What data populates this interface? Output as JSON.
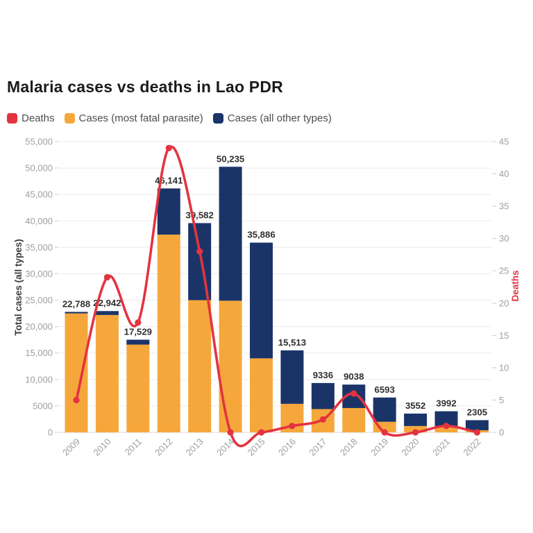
{
  "page": {
    "title": "Malaria cases vs deaths in Lao PDR",
    "background": "#ffffff"
  },
  "legend": {
    "items": [
      {
        "label": "Deaths",
        "color": "#e3333f"
      },
      {
        "label": "Cases (most fatal parasite)",
        "color": "#f6a73c"
      },
      {
        "label": "Cases (all other types)",
        "color": "#1b3468"
      }
    ]
  },
  "chart_data": {
    "type": "combo: stacked bar (left axis) + line (right axis)",
    "title": "Malaria cases vs deaths in Lao PDR",
    "categories": [
      "2009",
      "2010",
      "2011",
      "2012",
      "2013",
      "2014",
      "2015",
      "2016",
      "2017",
      "2018",
      "2019",
      "2020",
      "2021",
      "2022"
    ],
    "series": [
      {
        "name": "Cases (most fatal parasite)",
        "type": "bar",
        "stack": "cases",
        "color": "#f6a73c",
        "values": [
          22500,
          22200,
          16600,
          37400,
          25000,
          24900,
          14000,
          5400,
          4400,
          4600,
          2000,
          1200,
          1200,
          400
        ]
      },
      {
        "name": "Cases (all other types)",
        "type": "bar",
        "stack": "cases",
        "color": "#1b3468",
        "values": [
          288,
          742,
          929,
          8741,
          14582,
          25335,
          21886,
          10113,
          4936,
          4438,
          4593,
          2352,
          2792,
          1905
        ]
      },
      {
        "name": "Deaths",
        "type": "line",
        "axis": "right",
        "color": "#e3333f",
        "values": [
          5,
          24,
          17,
          44,
          28,
          0,
          0,
          1,
          2,
          6,
          0,
          0,
          1,
          0
        ]
      }
    ],
    "bar_totals": [
      22788,
      22942,
      17529,
      46141,
      39582,
      50235,
      35886,
      15513,
      9336,
      9038,
      6593,
      3552,
      3992,
      2305
    ],
    "bar_total_labels": [
      "22,788",
      "22,942",
      "17,529",
      "46,141",
      "39,582",
      "50,235",
      "35,886",
      "15,513",
      "9336",
      "9038",
      "6593",
      "3552",
      "3992",
      "2305"
    ],
    "left_axis": {
      "title": "Total cases (all types)",
      "min": 0,
      "max": 55000,
      "tick_step": 5000,
      "tick_labels": [
        "0",
        "5000",
        "10,000",
        "15,000",
        "20,000",
        "25,000",
        "30,000",
        "35,000",
        "40,000",
        "45,000",
        "50,000",
        "55,000"
      ]
    },
    "right_axis": {
      "title": "Deaths",
      "min": 0,
      "max": 45,
      "tick_step": 5,
      "tick_labels": [
        "0",
        "5",
        "10",
        "15",
        "20",
        "25",
        "30",
        "35",
        "40",
        "45"
      ]
    },
    "grid": "horizontal only",
    "legend_position": "top-left"
  },
  "style": {
    "grid_color": "#ebebeb",
    "zero_line_color": "#d9d9d9",
    "tick_dash_color": "#cccccc",
    "tick_text_color": "#9e9e9e",
    "bar_label_color": "#2f2f2f",
    "left_axis_title_color": "#3c3c3c"
  }
}
